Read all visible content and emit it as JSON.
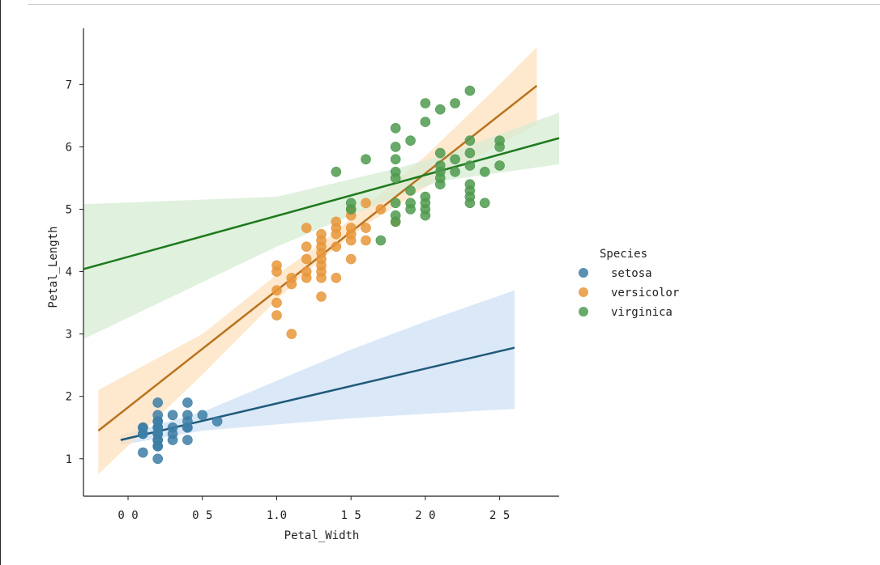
{
  "chart_data": {
    "type": "scatter",
    "title": "",
    "xlabel": "Petal_Width",
    "ylabel": "Petal_Length",
    "xlim": [
      -0.3,
      2.9
    ],
    "ylim": [
      0.4,
      7.9
    ],
    "x_ticks": [
      0.0,
      0.5,
      1.0,
      1.5,
      2.0,
      2.5
    ],
    "x_tick_labels": [
      "0 0",
      "0 5",
      "1.0",
      "1 5",
      "2 0",
      "2 5"
    ],
    "y_ticks": [
      1,
      2,
      3,
      4,
      5,
      6,
      7
    ],
    "y_tick_labels": [
      "1",
      "2",
      "3",
      "4",
      "5",
      "6",
      "7"
    ],
    "legend": {
      "title": "Species",
      "placement": "right"
    },
    "series": [
      {
        "name": "setosa",
        "color": "#3d7ea6",
        "line_color": "#1f5a7a",
        "band_color": "#cfe0f5",
        "fit": {
          "x": [
            -0.05,
            2.6
          ],
          "y": [
            1.3,
            2.78
          ]
        },
        "band": {
          "x": [
            -0.05,
            0.5,
            1.0,
            1.5,
            2.0,
            2.6
          ],
          "lower": [
            1.22,
            1.45,
            1.55,
            1.65,
            1.72,
            1.8
          ],
          "upper": [
            1.38,
            1.75,
            2.25,
            2.75,
            3.2,
            3.7
          ]
        },
        "points": [
          [
            0.1,
            1.4
          ],
          [
            0.1,
            1.5
          ],
          [
            0.1,
            1.4
          ],
          [
            0.1,
            1.5
          ],
          [
            0.1,
            1.1
          ],
          [
            0.2,
            1.0
          ],
          [
            0.2,
            1.2
          ],
          [
            0.2,
            1.3
          ],
          [
            0.2,
            1.4
          ],
          [
            0.2,
            1.4
          ],
          [
            0.2,
            1.5
          ],
          [
            0.2,
            1.5
          ],
          [
            0.2,
            1.6
          ],
          [
            0.2,
            1.6
          ],
          [
            0.2,
            1.7
          ],
          [
            0.2,
            1.9
          ],
          [
            0.2,
            1.2
          ],
          [
            0.2,
            1.3
          ],
          [
            0.3,
            1.3
          ],
          [
            0.3,
            1.4
          ],
          [
            0.3,
            1.5
          ],
          [
            0.3,
            1.7
          ],
          [
            0.4,
            1.3
          ],
          [
            0.4,
            1.5
          ],
          [
            0.4,
            1.5
          ],
          [
            0.4,
            1.6
          ],
          [
            0.4,
            1.7
          ],
          [
            0.4,
            1.9
          ],
          [
            0.5,
            1.7
          ],
          [
            0.6,
            1.6
          ]
        ]
      },
      {
        "name": "versicolor",
        "color": "#e8963a",
        "line_color": "#b8731e",
        "band_color": "#fde0bd",
        "fit": {
          "x": [
            -0.2,
            2.75
          ],
          "y": [
            1.45,
            6.98
          ]
        },
        "band": {
          "x": [
            -0.2,
            0.5,
            1.0,
            1.3,
            1.6,
            2.0,
            2.5,
            2.75
          ],
          "lower": [
            0.75,
            2.35,
            3.55,
            4.2,
            4.75,
            5.35,
            6.05,
            6.35
          ],
          "upper": [
            2.1,
            3.0,
            3.95,
            4.45,
            5.05,
            5.85,
            7.0,
            7.6
          ]
        },
        "points": [
          [
            1.0,
            3.3
          ],
          [
            1.0,
            3.5
          ],
          [
            1.0,
            3.7
          ],
          [
            1.0,
            4.0
          ],
          [
            1.0,
            4.1
          ],
          [
            1.1,
            3.0
          ],
          [
            1.1,
            3.8
          ],
          [
            1.1,
            3.9
          ],
          [
            1.2,
            3.9
          ],
          [
            1.2,
            4.0
          ],
          [
            1.2,
            4.2
          ],
          [
            1.2,
            4.4
          ],
          [
            1.2,
            4.7
          ],
          [
            1.3,
            3.6
          ],
          [
            1.3,
            4.0
          ],
          [
            1.3,
            4.1
          ],
          [
            1.3,
            4.2
          ],
          [
            1.3,
            4.3
          ],
          [
            1.3,
            4.4
          ],
          [
            1.3,
            4.5
          ],
          [
            1.3,
            4.6
          ],
          [
            1.3,
            3.9
          ],
          [
            1.4,
            3.9
          ],
          [
            1.4,
            4.4
          ],
          [
            1.4,
            4.6
          ],
          [
            1.4,
            4.7
          ],
          [
            1.4,
            4.8
          ],
          [
            1.5,
            4.2
          ],
          [
            1.5,
            4.5
          ],
          [
            1.5,
            4.6
          ],
          [
            1.5,
            4.7
          ],
          [
            1.5,
            4.9
          ],
          [
            1.5,
            5.0
          ],
          [
            1.6,
            4.5
          ],
          [
            1.6,
            4.7
          ],
          [
            1.6,
            5.1
          ],
          [
            1.7,
            5.0
          ],
          [
            1.8,
            4.8
          ]
        ]
      },
      {
        "name": "virginica",
        "color": "#4f9a4f",
        "line_color": "#1e7a1e",
        "band_color": "#d5ecd3",
        "fit": {
          "x": [
            -0.3,
            2.9
          ],
          "y": [
            4.04,
            6.14
          ]
        },
        "band": {
          "x": [
            -0.3,
            1.0,
            1.8,
            2.1,
            2.9
          ],
          "lower": [
            2.92,
            4.4,
            5.2,
            5.45,
            5.72
          ],
          "upper": [
            5.08,
            5.2,
            5.65,
            5.85,
            6.55
          ]
        },
        "points": [
          [
            1.4,
            5.6
          ],
          [
            1.5,
            5.0
          ],
          [
            1.5,
            5.1
          ],
          [
            1.6,
            5.8
          ],
          [
            1.7,
            4.5
          ],
          [
            1.8,
            4.8
          ],
          [
            1.8,
            4.9
          ],
          [
            1.8,
            5.1
          ],
          [
            1.8,
            5.5
          ],
          [
            1.8,
            5.6
          ],
          [
            1.8,
            5.8
          ],
          [
            1.8,
            6.0
          ],
          [
            1.8,
            6.3
          ],
          [
            1.9,
            5.0
          ],
          [
            1.9,
            5.1
          ],
          [
            1.9,
            5.3
          ],
          [
            1.9,
            6.1
          ],
          [
            2.0,
            4.9
          ],
          [
            2.0,
            5.0
          ],
          [
            2.0,
            5.1
          ],
          [
            2.0,
            5.2
          ],
          [
            2.0,
            6.4
          ],
          [
            2.0,
            6.7
          ],
          [
            2.1,
            5.4
          ],
          [
            2.1,
            5.5
          ],
          [
            2.1,
            5.6
          ],
          [
            2.1,
            5.7
          ],
          [
            2.1,
            5.9
          ],
          [
            2.1,
            6.6
          ],
          [
            2.2,
            5.6
          ],
          [
            2.2,
            5.8
          ],
          [
            2.2,
            6.7
          ],
          [
            2.3,
            5.1
          ],
          [
            2.3,
            5.2
          ],
          [
            2.3,
            5.3
          ],
          [
            2.3,
            5.4
          ],
          [
            2.3,
            5.7
          ],
          [
            2.3,
            5.9
          ],
          [
            2.3,
            6.1
          ],
          [
            2.3,
            6.9
          ],
          [
            2.4,
            5.1
          ],
          [
            2.4,
            5.6
          ],
          [
            2.5,
            5.7
          ],
          [
            2.5,
            6.0
          ],
          [
            2.5,
            6.1
          ]
        ]
      }
    ]
  }
}
